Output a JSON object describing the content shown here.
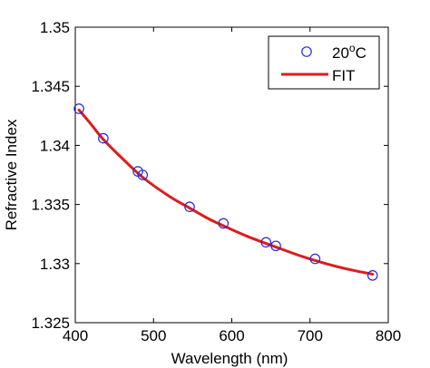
{
  "chart_data": {
    "type": "scatter",
    "xlabel": "Wavelength (nm)",
    "ylabel": "Refractive Index",
    "xlim": [
      400,
      800
    ],
    "ylim": [
      1.325,
      1.35
    ],
    "xticks": [
      400,
      500,
      600,
      700,
      800
    ],
    "yticks": [
      1.325,
      1.33,
      1.335,
      1.34,
      1.345,
      1.35
    ],
    "xtick_labels": [
      "400",
      "500",
      "600",
      "700",
      "800"
    ],
    "ytick_labels": [
      "1.325",
      "1.33",
      "1.335",
      "1.34",
      "1.345",
      "1.35"
    ],
    "grid": false,
    "legend_position": "top-right",
    "series": [
      {
        "name": "20°C",
        "name_parts": {
          "base": "20",
          "sup": "o",
          "unit": "C"
        },
        "kind": "markers",
        "marker": "circle-open",
        "color": "#2a2ad4",
        "x": [
          404.7,
          435.8,
          480.0,
          486.1,
          546.1,
          589.3,
          643.8,
          656.3,
          706.5,
          780.0
        ],
        "y": [
          1.3431,
          1.3406,
          1.3378,
          1.3375,
          1.3348,
          1.3334,
          1.3318,
          1.3315,
          1.3304,
          1.329
        ]
      },
      {
        "name": "FIT",
        "kind": "line",
        "color": "#dd1c1c",
        "x": [
          404.7,
          420,
          435.8,
          460,
          486.1,
          520,
          546.1,
          570,
          589.3,
          620,
          656.3,
          690,
          720,
          750,
          780.0
        ],
        "y": [
          1.343,
          1.3418,
          1.3405,
          1.3389,
          1.3373,
          1.3357,
          1.3347,
          1.3338,
          1.3332,
          1.3323,
          1.3314,
          1.3306,
          1.33,
          1.3295,
          1.3291
        ]
      }
    ]
  }
}
